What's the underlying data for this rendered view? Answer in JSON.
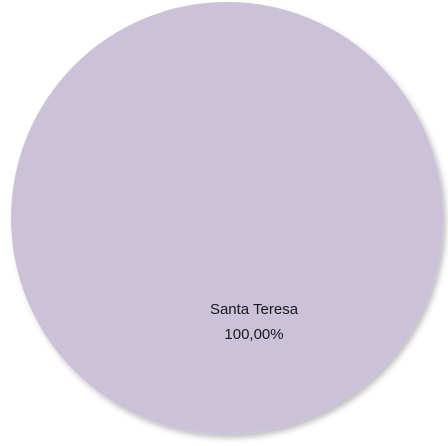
{
  "chart_data": {
    "type": "pie",
    "title": "",
    "slices": [
      {
        "label": "Santa Teresa",
        "value": 100.0,
        "value_label": "100,00%",
        "color": "#cbc2da"
      }
    ],
    "legend": "none"
  }
}
